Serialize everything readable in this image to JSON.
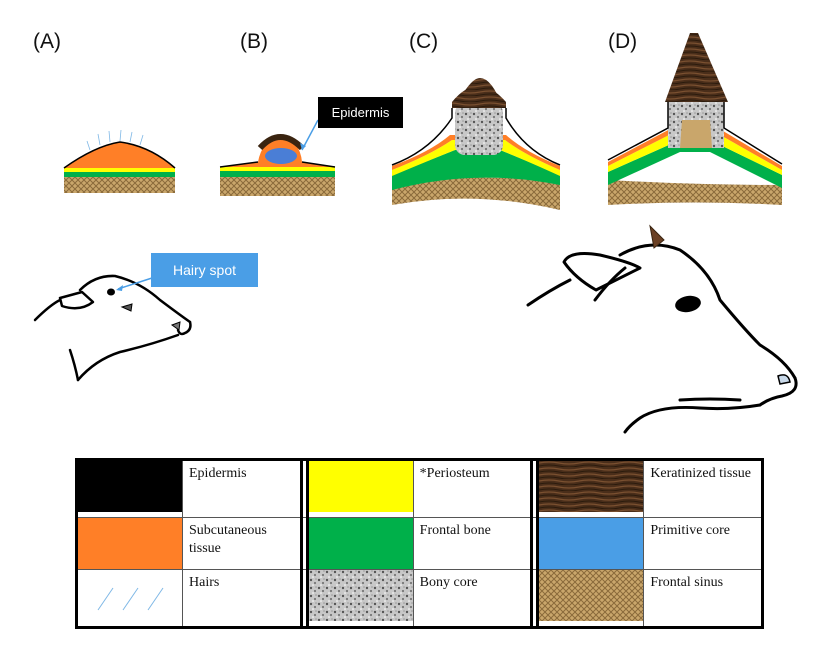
{
  "stages": [
    {
      "id": "a",
      "label": "(A)"
    },
    {
      "id": "b",
      "label": "(B)"
    },
    {
      "id": "c",
      "label": "(C)"
    },
    {
      "id": "d",
      "label": "(D)"
    }
  ],
  "callouts": {
    "epidermis": "Epidermis",
    "hairy_spot": "Hairy spot"
  },
  "colors": {
    "epidermis": "#000000",
    "subcutaneous": "#ff7f27",
    "periosteum": "#ffff00",
    "frontal_bone": "#00b04a",
    "primitive_core": "#4a9ee6",
    "keratinized": "#4a2e1a",
    "bony_core": "#b8b8b8",
    "frontal_sinus": "#c9a66b",
    "hair": "#7fb8e6"
  },
  "legend": {
    "epidermis": "Epidermis",
    "subcutaneous": "Subcutaneous tissue",
    "hairs": "Hairs",
    "periosteum": "*Periosteum",
    "frontal_bone": "Frontal  bone",
    "bony_core": "Bony core",
    "keratinized": "Keratinized tissue",
    "primitive_core": "Primitive core",
    "frontal_sinus": "Frontal sinus"
  }
}
